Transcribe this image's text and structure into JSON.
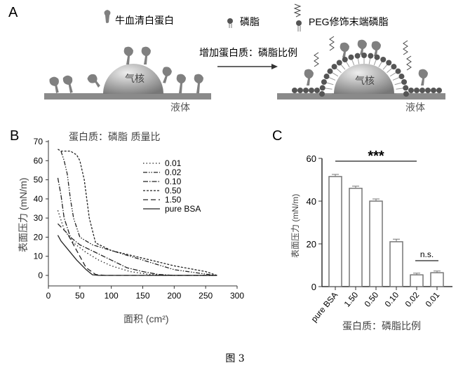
{
  "panel_a": {
    "label": "A",
    "legend": {
      "protein": "牛血清白蛋白",
      "lipid": "磷脂",
      "peg_lipid": "PEG修饰末端磷脂"
    },
    "arrow_text": "增加蛋白质：磷脂比例",
    "core_label": "气核",
    "liquid_label": "液体"
  },
  "chart_data": [
    {
      "panel": "B",
      "type": "line",
      "title": "蛋白质：磷脂 质量比",
      "xlabel": "面积 (cm²)",
      "ylabel": "表面压力 (mN/m)",
      "xlim": [
        0,
        300
      ],
      "ylim": [
        0,
        70
      ],
      "xticks": [
        "0",
        "50",
        "100",
        "150",
        "200",
        "250",
        "300"
      ],
      "yticks": [
        "0",
        "10",
        "20",
        "30",
        "40",
        "50",
        "60",
        "70"
      ],
      "legend_position": "top-right",
      "series": [
        {
          "name": "0.01",
          "style": "dotted",
          "x": [
            15,
            25,
            40,
            60,
            80,
            100,
            130,
            160,
            200,
            268
          ],
          "y": [
            34,
            24,
            17,
            12,
            8,
            5,
            2,
            0.5,
            0,
            0
          ]
        },
        {
          "name": "0.02",
          "style": "dash-dot-dot",
          "x": [
            20,
            25,
            30,
            35,
            40,
            50,
            70,
            100,
            150,
            200,
            265
          ],
          "y": [
            65,
            60,
            53,
            40,
            30,
            20,
            16,
            13,
            8,
            3,
            0
          ]
        },
        {
          "name": "0.10",
          "style": "dash-dot",
          "x": [
            15,
            20,
            25,
            35,
            50,
            75,
            100,
            125,
            150,
            175,
            200,
            268
          ],
          "y": [
            51,
            42,
            30,
            20,
            16,
            12,
            8,
            4,
            2,
            0.5,
            0,
            0
          ]
        },
        {
          "name": "0.50",
          "style": "short-dash",
          "x": [
            15,
            20,
            35,
            45,
            50,
            57,
            65,
            75,
            100,
            150,
            200,
            250,
            268
          ],
          "y": [
            66,
            65,
            65,
            63,
            60,
            50,
            30,
            17,
            13,
            9,
            5,
            2,
            0
          ]
        },
        {
          "name": "1.50",
          "style": "long-dash",
          "x": [
            15,
            30,
            45,
            60,
            75,
            90,
            268
          ],
          "y": [
            27,
            22,
            13,
            4,
            0.5,
            0,
            0
          ]
        },
        {
          "name": "pure BSA",
          "style": "solid",
          "x": [
            15,
            20,
            30,
            45,
            60,
            70,
            80,
            268
          ],
          "y": [
            21,
            18,
            14,
            8,
            3,
            0.3,
            0,
            0
          ]
        }
      ]
    },
    {
      "panel": "C",
      "type": "bar",
      "xlabel": "蛋白质：磷脂比例",
      "ylabel": "表面压力 (mN/m)",
      "ylim": [
        0,
        60
      ],
      "yticks": [
        "0",
        "20",
        "40",
        "60"
      ],
      "categories": [
        "pure BSA",
        "1.50",
        "0.50",
        "0.10",
        "0.02",
        "0.01"
      ],
      "values": [
        51.5,
        46,
        40,
        21,
        5.5,
        6.5
      ],
      "errors": [
        1,
        1,
        1,
        1.2,
        0.8,
        0.8
      ],
      "annotations": [
        {
          "text": "***",
          "from": "pure BSA",
          "to": "0.02"
        },
        {
          "text": "n.s.",
          "from": "0.02",
          "to": "0.01"
        }
      ]
    }
  ],
  "panel_b_label": "B",
  "panel_c_label": "C",
  "caption": "图 3"
}
